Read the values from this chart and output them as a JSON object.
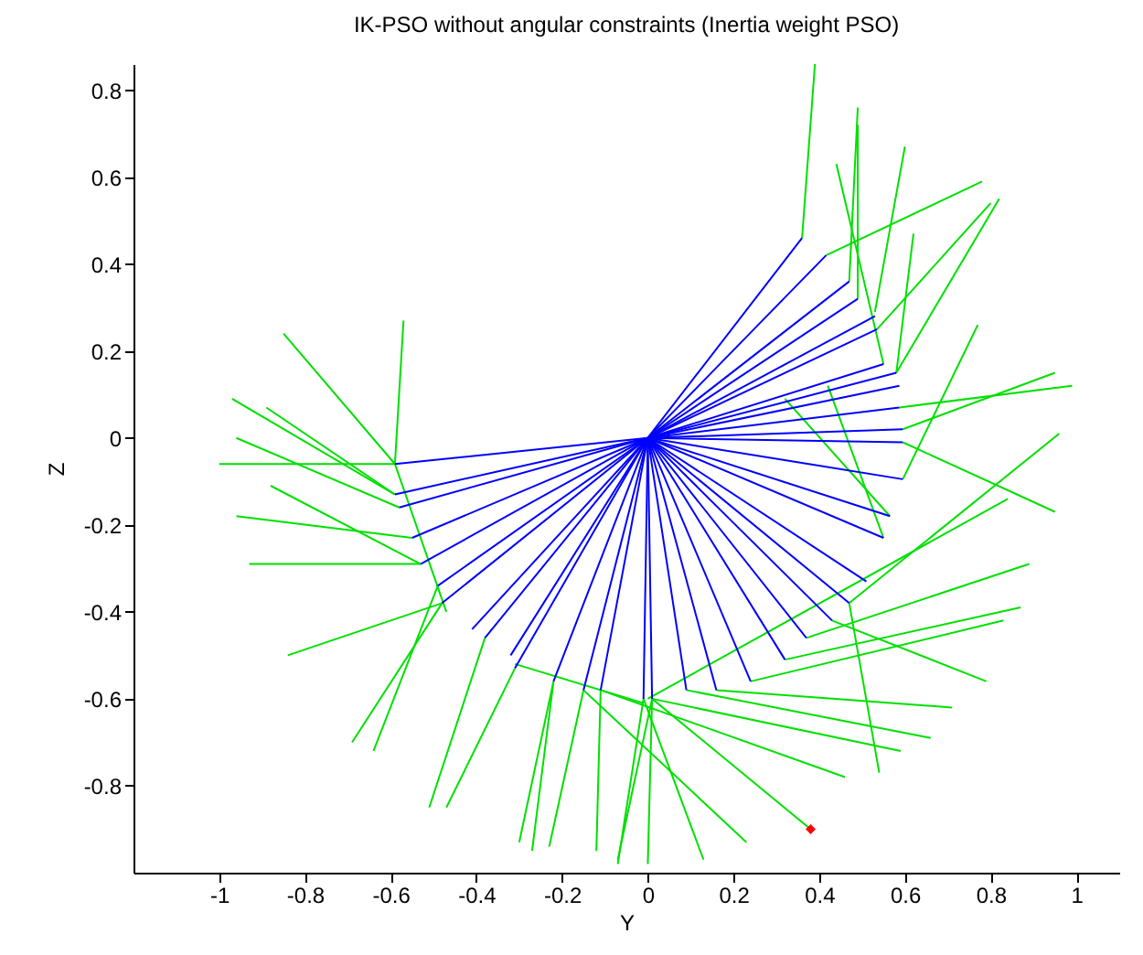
{
  "chart_data": {
    "type": "line",
    "title": "IK-PSO without angular constraints (Inertia weight PSO)",
    "xlabel": "Y",
    "ylabel": "Z",
    "xlim": [
      -1.2,
      1.1
    ],
    "ylim": [
      -1,
      0.86
    ],
    "xticks": [
      -1,
      -0.8,
      -0.6,
      -0.4,
      -0.2,
      0,
      0.2,
      0.4,
      0.6,
      0.8,
      1
    ],
    "yticks": [
      -0.8,
      -0.6,
      -0.4,
      -0.2,
      0,
      0.2,
      0.4,
      0.6,
      0.8
    ],
    "series": [
      {
        "color": "#00e000",
        "x": [
          -0.85,
          -0.59,
          -0.47
        ],
        "values": [
          0.24,
          -0.06,
          -0.4
        ]
      },
      {
        "color": "#00e000",
        "x": [
          -0.59,
          -0.57
        ],
        "values": [
          -0.06,
          0.27
        ]
      },
      {
        "color": "#00e000",
        "x": [
          -0.59,
          -0.97
        ],
        "values": [
          -0.13,
          0.09
        ]
      },
      {
        "color": "#00e000",
        "x": [
          -0.59,
          -0.89
        ],
        "values": [
          -0.13,
          0.07
        ]
      },
      {
        "color": "#00e000",
        "x": [
          -0.58,
          -0.96
        ],
        "values": [
          -0.16,
          0
        ]
      },
      {
        "color": "#00e000",
        "x": [
          -0.59,
          -1
        ],
        "values": [
          -0.06,
          -0.06
        ]
      },
      {
        "color": "#00e000",
        "x": [
          -0.53,
          -0.88
        ],
        "values": [
          -0.29,
          -0.11
        ]
      },
      {
        "color": "#00e000",
        "x": [
          -0.55,
          -0.96
        ],
        "values": [
          -0.23,
          -0.18
        ]
      },
      {
        "color": "#00e000",
        "x": [
          -0.53,
          -0.93
        ],
        "values": [
          -0.29,
          -0.29
        ]
      },
      {
        "color": "#00e000",
        "x": [
          -0.48,
          -0.84
        ],
        "values": [
          -0.38,
          -0.5
        ]
      },
      {
        "color": "#00e000",
        "x": [
          -0.48,
          -0.69
        ],
        "values": [
          -0.38,
          -0.7
        ]
      },
      {
        "color": "#00e000",
        "x": [
          -0.49,
          -0.64
        ],
        "values": [
          -0.34,
          -0.72
        ]
      },
      {
        "color": "#00e000",
        "x": [
          -0.38,
          -0.51
        ],
        "values": [
          -0.46,
          -0.85
        ]
      },
      {
        "color": "#00e000",
        "x": [
          -0.31,
          -0.47
        ],
        "values": [
          -0.53,
          -0.85
        ]
      },
      {
        "color": "#00e000",
        "x": [
          -0.22,
          -0.3
        ],
        "values": [
          -0.56,
          -0.93
        ]
      },
      {
        "color": "#00e000",
        "x": [
          -0.22,
          -0.27
        ],
        "values": [
          -0.56,
          -0.95
        ]
      },
      {
        "color": "#00e000",
        "x": [
          -0.15,
          -0.23
        ],
        "values": [
          -0.58,
          -0.94
        ]
      },
      {
        "color": "#00e000",
        "x": [
          -0.11,
          -0.12
        ],
        "values": [
          -0.58,
          -0.95
        ]
      },
      {
        "color": "#00e000",
        "x": [
          -0.01,
          -0.07
        ],
        "values": [
          -0.6,
          -0.98
        ]
      },
      {
        "color": "#00e000",
        "x": [
          -0.31,
          -0.01
        ],
        "values": [
          -0.52,
          -0.61
        ]
      },
      {
        "color": "#00e000",
        "x": [
          0,
          0.84
        ],
        "values": [
          -0.6,
          -0.14
        ]
      },
      {
        "color": "#00e000",
        "x": [
          0.01,
          0
        ],
        "values": [
          -0.6,
          -0.98
        ]
      },
      {
        "color": "#00e000",
        "x": [
          0.47,
          0.96
        ],
        "values": [
          -0.38,
          0.01
        ]
      },
      {
        "color": "#00e000",
        "x": [
          0.595,
          0.95
        ],
        "values": [
          -0.01,
          -0.17
        ]
      },
      {
        "color": "#00e000",
        "x": [
          0.37,
          0.89
        ],
        "values": [
          -0.46,
          -0.29
        ]
      },
      {
        "color": "#00e000",
        "x": [
          0.32,
          0.87
        ],
        "values": [
          -0.51,
          -0.39
        ]
      },
      {
        "color": "#00e000",
        "x": [
          0.24,
          0.83
        ],
        "values": [
          -0.56,
          -0.42
        ]
      },
      {
        "color": "#00e000",
        "x": [
          0.43,
          0.79
        ],
        "values": [
          -0.42,
          -0.56
        ]
      },
      {
        "color": "#00e000",
        "x": [
          0.16,
          0.71
        ],
        "values": [
          -0.58,
          -0.62
        ]
      },
      {
        "color": "#00e000",
        "x": [
          0.09,
          0.66
        ],
        "values": [
          -0.58,
          -0.69
        ]
      },
      {
        "color": "#00e000",
        "x": [
          0.01,
          0.59
        ],
        "values": [
          -0.6,
          -0.72
        ]
      },
      {
        "color": "#00e000",
        "x": [
          -0.11,
          0.46
        ],
        "values": [
          -0.58,
          -0.78
        ]
      },
      {
        "color": "#00e000",
        "x": [
          0.01,
          0.38
        ],
        "values": [
          -0.6,
          -0.9
        ]
      },
      {
        "color": "#00e000",
        "x": [
          0.47,
          0.54
        ],
        "values": [
          -0.38,
          -0.77
        ]
      },
      {
        "color": "#00e000",
        "x": [
          -0.15,
          0.23
        ],
        "values": [
          -0.58,
          -0.93
        ]
      },
      {
        "color": "#00e000",
        "x": [
          -0.01,
          0.13
        ],
        "values": [
          -0.6,
          -0.97
        ]
      },
      {
        "color": "#00e000",
        "x": [
          0.01,
          -0.07
        ],
        "values": [
          -0.6,
          -0.97
        ]
      },
      {
        "color": "#00e000",
        "x": [
          0.36,
          0.39
        ],
        "values": [
          0.46,
          0.86
        ]
      },
      {
        "color": "#00e000",
        "x": [
          0.47,
          0.49
        ],
        "values": [
          0.36,
          0.76
        ]
      },
      {
        "color": "#00e000",
        "x": [
          0.49,
          0.49
        ],
        "values": [
          0.32,
          0.72
        ]
      },
      {
        "color": "#00e000",
        "x": [
          0.55,
          0.44
        ],
        "values": [
          0.17,
          0.63
        ]
      },
      {
        "color": "#00e000",
        "x": [
          0.53,
          0.6
        ],
        "values": [
          0.29,
          0.67
        ]
      },
      {
        "color": "#00e000",
        "x": [
          0.416,
          0.78
        ],
        "values": [
          0.42,
          0.59
        ]
      },
      {
        "color": "#00e000",
        "x": [
          0.58,
          0.82
        ],
        "values": [
          0.15,
          0.55
        ]
      },
      {
        "color": "#00e000",
        "x": [
          0.535,
          0.8
        ],
        "values": [
          0.25,
          0.54
        ]
      },
      {
        "color": "#00e000",
        "x": [
          0.595,
          0.77
        ],
        "values": [
          -0.095,
          0.26
        ]
      },
      {
        "color": "#00e000",
        "x": [
          0.587,
          0.99
        ],
        "values": [
          0.07,
          0.12
        ]
      },
      {
        "color": "#00e000",
        "x": [
          0.595,
          0.95
        ],
        "values": [
          0.02,
          0.15
        ]
      },
      {
        "color": "#00e000",
        "x": [
          0.58,
          0.62
        ],
        "values": [
          0.15,
          0.47
        ]
      },
      {
        "color": "#00e000",
        "x": [
          0.565,
          0.32
        ],
        "values": [
          -0.18,
          0.09
        ]
      },
      {
        "color": "#00e000",
        "x": [
          0.55,
          0.42
        ],
        "values": [
          -0.23,
          0.12
        ]
      },
      {
        "color": "#0000ff",
        "x": [
          -0.01,
          0,
          0.36
        ],
        "values": [
          -0.6,
          0,
          0.46
        ]
      },
      {
        "color": "#0000ff",
        "x": [
          -0.11,
          0,
          0.416
        ],
        "values": [
          -0.58,
          0,
          0.42
        ]
      },
      {
        "color": "#0000ff",
        "x": [
          -0.15,
          0,
          0.47
        ],
        "values": [
          -0.58,
          0,
          0.36
        ]
      },
      {
        "color": "#0000ff",
        "x": [
          -0.22,
          0,
          0.49
        ],
        "values": [
          -0.56,
          0,
          0.32
        ]
      },
      {
        "color": "#0000ff",
        "x": [
          -0.31,
          0,
          0.53
        ],
        "values": [
          -0.53,
          0,
          0.28
        ]
      },
      {
        "color": "#0000ff",
        "x": [
          -0.32,
          0,
          0.535
        ],
        "values": [
          -0.5,
          0,
          0.25
        ]
      },
      {
        "color": "#0000ff",
        "x": [
          -0.38,
          0,
          0.55
        ],
        "values": [
          -0.46,
          0,
          0.17
        ]
      },
      {
        "color": "#0000ff",
        "x": [
          -0.41,
          0,
          0.58
        ],
        "values": [
          -0.44,
          0,
          0.15
        ]
      },
      {
        "color": "#0000ff",
        "x": [
          -0.48,
          0,
          0.587
        ],
        "values": [
          -0.38,
          0,
          0.12
        ]
      },
      {
        "color": "#0000ff",
        "x": [
          -0.49,
          0,
          0.587
        ],
        "values": [
          -0.34,
          0,
          0.07
        ]
      },
      {
        "color": "#0000ff",
        "x": [
          -0.53,
          0,
          0.595
        ],
        "values": [
          -0.29,
          0,
          0.02
        ]
      },
      {
        "color": "#0000ff",
        "x": [
          -0.55,
          0,
          0.595
        ],
        "values": [
          -0.23,
          0,
          -0.01
        ]
      },
      {
        "color": "#0000ff",
        "x": [
          -0.58,
          0,
          0.595
        ],
        "values": [
          -0.16,
          0,
          -0.095
        ]
      },
      {
        "color": "#0000ff",
        "x": [
          -0.59,
          0,
          0.565
        ],
        "values": [
          -0.13,
          0,
          -0.18
        ]
      },
      {
        "color": "#0000ff",
        "x": [
          -0.59,
          0,
          0.55
        ],
        "values": [
          -0.06,
          0,
          -0.23
        ]
      },
      {
        "color": "#0000ff",
        "x": [
          0,
          0.51
        ],
        "values": [
          0,
          -0.33
        ]
      },
      {
        "color": "#0000ff",
        "x": [
          0,
          0.47
        ],
        "values": [
          0,
          -0.38
        ]
      },
      {
        "color": "#0000ff",
        "x": [
          0,
          0.43
        ],
        "values": [
          0,
          -0.42
        ]
      },
      {
        "color": "#0000ff",
        "x": [
          0,
          0.37
        ],
        "values": [
          0,
          -0.46
        ]
      },
      {
        "color": "#0000ff",
        "x": [
          0,
          0.32
        ],
        "values": [
          0,
          -0.51
        ]
      },
      {
        "color": "#0000ff",
        "x": [
          0,
          0.24
        ],
        "values": [
          0,
          -0.56
        ]
      },
      {
        "color": "#0000ff",
        "x": [
          0,
          0.16
        ],
        "values": [
          0,
          -0.58
        ]
      },
      {
        "color": "#0000ff",
        "x": [
          0,
          0.09
        ],
        "values": [
          0,
          -0.58
        ]
      },
      {
        "color": "#0000ff",
        "x": [
          0,
          0.01
        ],
        "values": [
          0,
          -0.6
        ]
      },
      {
        "type": "scatter",
        "color": "#ff0000",
        "x": [
          0.38
        ],
        "values": [
          -0.9
        ]
      }
    ]
  }
}
